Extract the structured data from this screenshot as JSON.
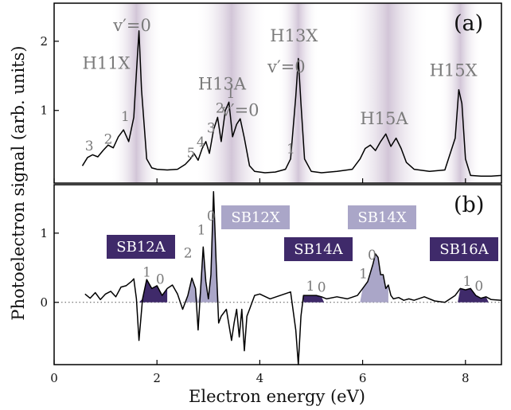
{
  "chart_data": [
    {
      "panel": "(a)",
      "type": "line",
      "xlabel": "Electron energy (eV)",
      "ylabel": "Photoelectron signal (arb. units)",
      "xlim": [
        0,
        8.7
      ],
      "ylim": [
        -0.05,
        2.55
      ],
      "xticks": [
        0,
        2,
        4,
        6,
        8
      ],
      "yticks": [
        1,
        2
      ],
      "grid": false,
      "background_bands": [
        {
          "center": 1.6,
          "width": 1.0
        },
        {
          "center": 3.45,
          "width": 1.4
        },
        {
          "center": 4.75,
          "width": 0.8
        },
        {
          "center": 6.5,
          "width": 1.6
        },
        {
          "center": 7.9,
          "width": 0.8
        }
      ],
      "series": [
        {
          "x": [
            0.55,
            0.65,
            0.75,
            0.85,
            0.95,
            1.05,
            1.15,
            1.25,
            1.35,
            1.45,
            1.55,
            1.6,
            1.65,
            1.7,
            1.8,
            1.9,
            2.0,
            2.2,
            2.4,
            2.55,
            2.65,
            2.72,
            2.8,
            2.88,
            2.95,
            3.02,
            3.1,
            3.18,
            3.25,
            3.33,
            3.4,
            3.47,
            3.55,
            3.62,
            3.7,
            3.8,
            3.9,
            4.1,
            4.3,
            4.5,
            4.6,
            4.7,
            4.75,
            4.8,
            4.87,
            5.0,
            5.2,
            5.5,
            5.8,
            5.95,
            6.05,
            6.15,
            6.25,
            6.35,
            6.45,
            6.55,
            6.65,
            6.75,
            6.85,
            7.0,
            7.3,
            7.6,
            7.8,
            7.87,
            7.93,
            8.0,
            8.1,
            8.3,
            8.5,
            8.7
          ],
          "y": [
            0.2,
            0.32,
            0.36,
            0.33,
            0.42,
            0.5,
            0.46,
            0.62,
            0.72,
            0.55,
            0.9,
            1.55,
            2.15,
            1.3,
            0.3,
            0.17,
            0.15,
            0.14,
            0.15,
            0.22,
            0.3,
            0.38,
            0.28,
            0.45,
            0.55,
            0.38,
            0.72,
            0.9,
            0.55,
            1.0,
            1.12,
            0.62,
            0.8,
            0.88,
            0.6,
            0.2,
            0.12,
            0.1,
            0.11,
            0.15,
            0.3,
            1.2,
            1.75,
            1.1,
            0.3,
            0.12,
            0.1,
            0.12,
            0.15,
            0.3,
            0.45,
            0.5,
            0.42,
            0.55,
            0.66,
            0.48,
            0.6,
            0.45,
            0.25,
            0.15,
            0.12,
            0.14,
            0.6,
            1.3,
            1.1,
            0.3,
            0.06,
            0.05,
            0.05,
            0.06
          ]
        }
      ],
      "annotations": [
        {
          "text": "H11X",
          "x": 0.55,
          "y": 1.6
        },
        {
          "text": "H13A",
          "x": 2.8,
          "y": 1.3
        },
        {
          "text": "H13X",
          "x": 4.2,
          "y": 2.0
        },
        {
          "text": "H15A",
          "x": 5.95,
          "y": 0.8
        },
        {
          "text": "H15X",
          "x": 7.3,
          "y": 1.5
        },
        {
          "text": "v′=0",
          "x": 1.15,
          "y": 2.15
        },
        {
          "text": "v′=0",
          "x": 4.15,
          "y": 1.55
        },
        {
          "text": "v′=0",
          "x": 3.25,
          "y": 0.92
        },
        {
          "text": "1",
          "x": 1.3,
          "y": 0.85
        },
        {
          "text": "2",
          "x": 0.97,
          "y": 0.52
        },
        {
          "text": "3",
          "x": 0.6,
          "y": 0.42
        },
        {
          "text": "1",
          "x": 3.35,
          "y": 1.18
        },
        {
          "text": "2",
          "x": 3.14,
          "y": 0.97
        },
        {
          "text": "3",
          "x": 2.97,
          "y": 0.68
        },
        {
          "text": "4",
          "x": 2.77,
          "y": 0.48
        },
        {
          "text": "5",
          "x": 2.58,
          "y": 0.32
        },
        {
          "text": "1",
          "x": 4.52,
          "y": 0.38
        }
      ]
    },
    {
      "panel": "(b)",
      "type": "line",
      "xlabel": "Electron energy (eV)",
      "ylabel": "Photoelectron signal (arb. units)",
      "xlim": [
        0,
        8.7
      ],
      "ylim": [
        -0.9,
        1.7
      ],
      "xticks": [
        0,
        2,
        4,
        6,
        8
      ],
      "yticks": [
        0,
        1
      ],
      "grid": false,
      "zero_line": "dotted",
      "series": [
        {
          "x": [
            0.6,
            0.7,
            0.8,
            0.9,
            1.0,
            1.1,
            1.2,
            1.3,
            1.4,
            1.5,
            1.55,
            1.6,
            1.65,
            1.72,
            1.8,
            1.9,
            2.0,
            2.1,
            2.2,
            2.3,
            2.4,
            2.5,
            2.6,
            2.68,
            2.75,
            2.8,
            2.85,
            2.9,
            2.95,
            3.0,
            3.05,
            3.1,
            3.15,
            3.2,
            3.25,
            3.35,
            3.45,
            3.5,
            3.55,
            3.6,
            3.65,
            3.7,
            3.75,
            3.8,
            3.9,
            4.0,
            4.2,
            4.4,
            4.6,
            4.7,
            4.75,
            4.8,
            4.85,
            4.9,
            5.0,
            5.1,
            5.2,
            5.3,
            5.5,
            5.7,
            5.9,
            6.0,
            6.1,
            6.2,
            6.25,
            6.3,
            6.35,
            6.4,
            6.45,
            6.5,
            6.55,
            6.6,
            6.7,
            6.8,
            6.9,
            7.0,
            7.2,
            7.4,
            7.6,
            7.8,
            7.9,
            8.0,
            8.1,
            8.2,
            8.3,
            8.4,
            8.5,
            8.7
          ],
          "y": [
            0.12,
            0.06,
            0.14,
            0.04,
            0.12,
            0.16,
            0.08,
            0.22,
            0.24,
            0.3,
            0.34,
            0.05,
            -0.55,
            0.05,
            0.33,
            0.2,
            0.24,
            0.1,
            0.2,
            0.25,
            0.12,
            -0.1,
            0.1,
            0.35,
            0.2,
            -0.4,
            0.2,
            0.8,
            0.3,
            0.05,
            0.4,
            1.6,
            0.6,
            -0.3,
            -0.2,
            -0.1,
            -0.55,
            -0.3,
            -0.1,
            -0.5,
            -0.1,
            -0.7,
            -0.2,
            -0.1,
            0.1,
            0.12,
            0.05,
            0.1,
            0.15,
            -0.4,
            -1.0,
            -0.2,
            0.1,
            0.1,
            0.1,
            0.1,
            0.08,
            0.05,
            0.08,
            0.05,
            0.1,
            0.2,
            0.3,
            0.55,
            0.7,
            0.65,
            0.4,
            0.4,
            0.2,
            0.25,
            0.1,
            0.05,
            0.07,
            0.03,
            0.05,
            0.03,
            0.08,
            0.02,
            0.0,
            0.1,
            0.2,
            0.18,
            0.2,
            0.1,
            0.06,
            0.08,
            0.04,
            0.03
          ]
        }
      ],
      "filled_regions": [
        {
          "label": "SB12A",
          "x_range": [
            1.65,
            2.2
          ],
          "style": "dark"
        },
        {
          "label": "SB12X",
          "x_range": [
            2.55,
            3.2
          ],
          "style": "light"
        },
        {
          "label": "SB14A",
          "x_range": [
            4.85,
            5.25
          ],
          "style": "dark"
        },
        {
          "label": "SB14X",
          "x_range": [
            5.95,
            6.5
          ],
          "style": "light"
        },
        {
          "label": "SB16A",
          "x_range": [
            7.85,
            8.45
          ],
          "style": "dark"
        }
      ],
      "badges": [
        {
          "text": "SB12A",
          "style": "dark"
        },
        {
          "text": "SB12X",
          "style": "light"
        },
        {
          "text": "SB14A",
          "style": "dark"
        },
        {
          "text": "SB14X",
          "style": "light"
        },
        {
          "text": "SB16A",
          "style": "dark"
        }
      ],
      "annotations": [
        {
          "text": "1",
          "x": 1.72,
          "y": 0.37
        },
        {
          "text": "0",
          "x": 1.98,
          "y": 0.27
        },
        {
          "text": "2",
          "x": 2.52,
          "y": 0.65
        },
        {
          "text": "1",
          "x": 2.78,
          "y": 0.98
        },
        {
          "text": "0",
          "x": 2.97,
          "y": 1.18
        },
        {
          "text": "1",
          "x": 4.9,
          "y": 0.17
        },
        {
          "text": "0",
          "x": 5.12,
          "y": 0.15
        },
        {
          "text": "1",
          "x": 5.93,
          "y": 0.35
        },
        {
          "text": "0",
          "x": 6.1,
          "y": 0.62
        },
        {
          "text": "1",
          "x": 7.95,
          "y": 0.24
        },
        {
          "text": "0",
          "x": 8.18,
          "y": 0.17
        }
      ]
    }
  ],
  "colors": {
    "dark_fill": "#3f2a6a",
    "light_fill": "#aaa6c8",
    "band": "#d9d0de",
    "line": "#000000",
    "peak_label": "#7a7a7a"
  }
}
